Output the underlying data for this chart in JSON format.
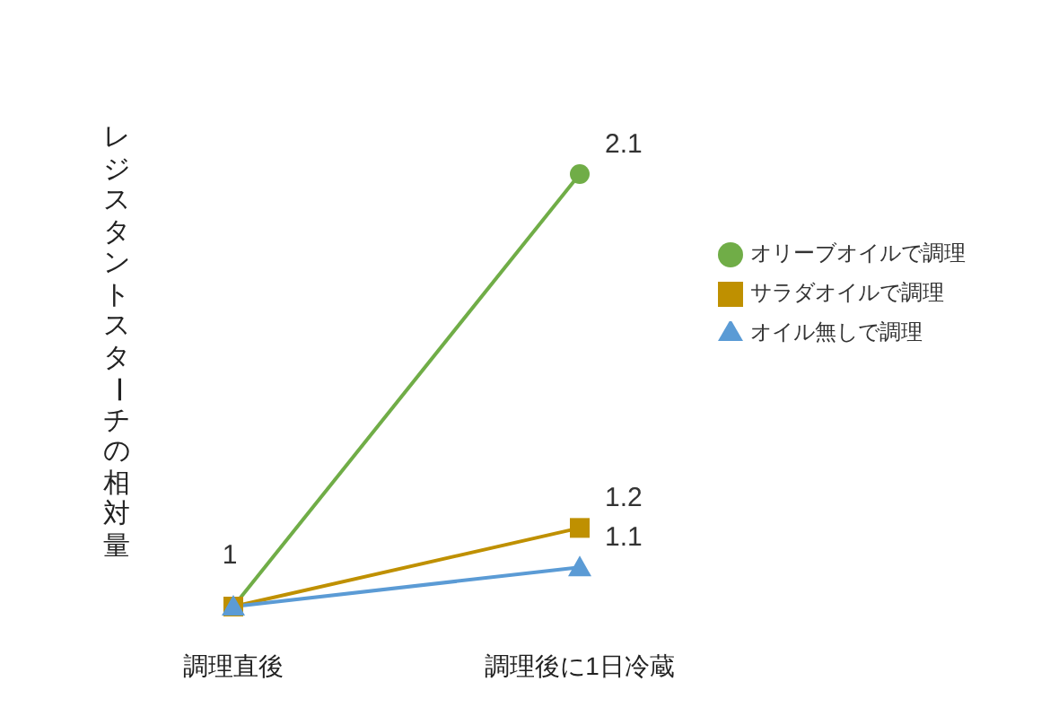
{
  "chart_data": {
    "type": "line",
    "ylabel": "レジスタントスターチの相対量",
    "categories": [
      "調理直後",
      "調理後に1日冷蔵"
    ],
    "legend": "right",
    "series": [
      {
        "name": "オリーブオイルで調理",
        "color": "#70ad47",
        "marker": "circle",
        "values": [
          1,
          2.1
        ],
        "value_labels": [
          "1",
          "2.1"
        ]
      },
      {
        "name": "サラダオイルで調理",
        "color": "#bf9000",
        "marker": "square",
        "values": [
          1,
          1.2
        ],
        "value_labels": [
          null,
          "1.2"
        ]
      },
      {
        "name": "オイル無しで調理",
        "color": "#5b9bd5",
        "marker": "triangle",
        "values": [
          1,
          1.1
        ],
        "value_labels": [
          null,
          "1.1"
        ]
      }
    ]
  }
}
